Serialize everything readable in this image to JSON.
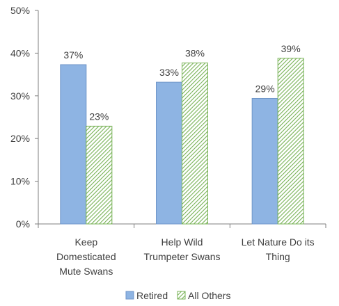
{
  "chart_data": {
    "type": "bar",
    "categories": [
      [
        "Keep",
        "Domesticated",
        "Mute Swans"
      ],
      [
        "Help Wild",
        "Trumpeter Swans"
      ],
      [
        "Let Nature Do its",
        "Thing"
      ]
    ],
    "series": [
      {
        "name": "Retired",
        "values": [
          0.373,
          0.332,
          0.294
        ],
        "labels": [
          "37%",
          "33%",
          "29%"
        ],
        "color": "#8eb4e3",
        "pattern": "solid"
      },
      {
        "name": "All Others",
        "values": [
          0.229,
          0.377,
          0.388
        ],
        "labels": [
          "23%",
          "38%",
          "39%"
        ],
        "color": "#77b255",
        "pattern": "diagonal-hatch"
      }
    ],
    "y_ticks": [
      "0%",
      "10%",
      "20%",
      "30%",
      "40%",
      "50%"
    ],
    "ylim": [
      0,
      0.5
    ],
    "grid": false,
    "legend_position": "bottom",
    "title": "",
    "xlabel": "",
    "ylabel": ""
  }
}
